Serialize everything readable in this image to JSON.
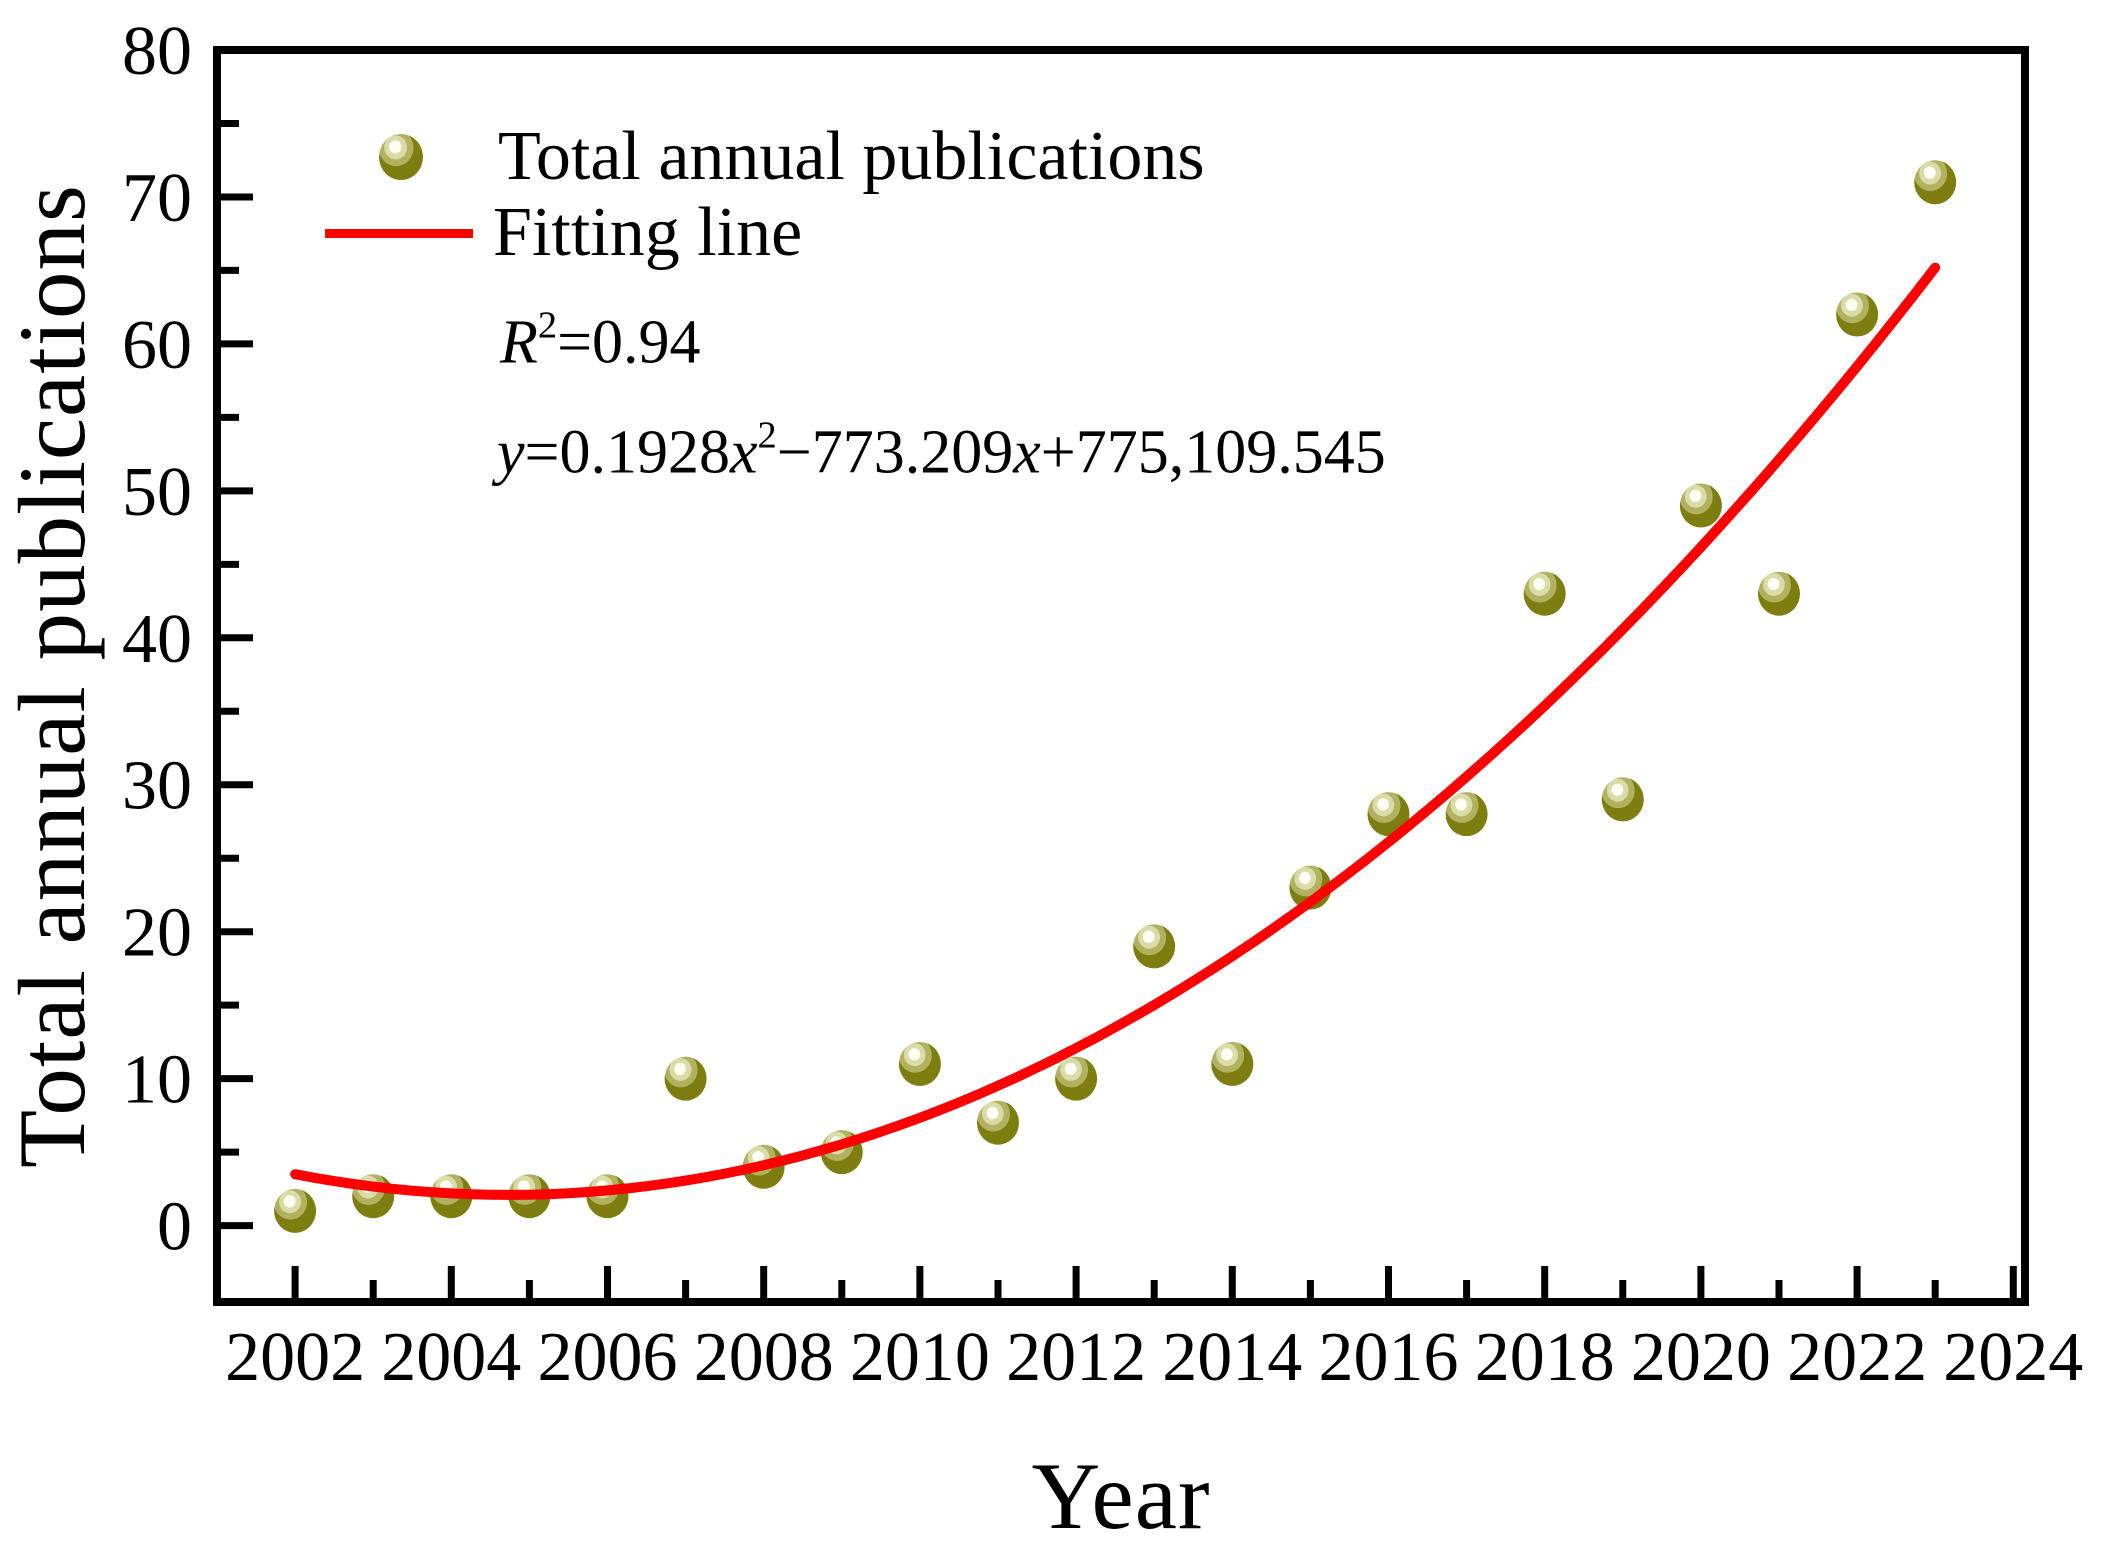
{
  "figure": {
    "background": "#ffffff"
  },
  "chart_data": {
    "type": "scatter",
    "title": "",
    "xlabel": "Year",
    "ylabel": "Total annual publications",
    "xlim": [
      2001,
      2024.15
    ],
    "ylim": [
      -5.2,
      80
    ],
    "grid": false,
    "legend_position": "upper-left",
    "x_major_ticks": [
      2002,
      2004,
      2006,
      2008,
      2010,
      2012,
      2014,
      2016,
      2018,
      2020,
      2022,
      2024
    ],
    "x_minor_ticks": [
      2003,
      2005,
      2007,
      2009,
      2011,
      2013,
      2015,
      2017,
      2019,
      2021,
      2023
    ],
    "y_major_ticks": [
      0,
      10,
      20,
      30,
      40,
      50,
      60,
      70,
      80
    ],
    "y_minor_ticks": [
      5,
      15,
      25,
      35,
      45,
      55,
      65,
      75
    ],
    "series": [
      {
        "name": "Total annual publications",
        "type": "scatter",
        "marker": "sphere",
        "x": [
          2002,
          2003,
          2004,
          2005,
          2006,
          2007,
          2008,
          2009,
          2010,
          2011,
          2012,
          2013,
          2014,
          2015,
          2016,
          2017,
          2018,
          2019,
          2020,
          2021,
          2022,
          2023
        ],
        "y": [
          1,
          2,
          2,
          2,
          2,
          10,
          4,
          5,
          11,
          7,
          10,
          19,
          11,
          23,
          28,
          28,
          43,
          29,
          49,
          43,
          62,
          71
        ]
      },
      {
        "name": "Fitting line",
        "type": "line",
        "fit": {
          "kind": "quadratic",
          "a": 0.1891,
          "b": -1.0334,
          "c": 3.5,
          "t0": 2002,
          "domain": [
            2002,
            2023
          ]
        }
      }
    ],
    "annotations": [
      {
        "id": "r_squared",
        "parts": [
          {
            "text": "R",
            "italic": true
          },
          {
            "text": "2",
            "sup": true
          },
          {
            "text": "=0.94"
          }
        ]
      },
      {
        "id": "equation",
        "parts": [
          {
            "text": "y",
            "italic": true
          },
          {
            "text": "=0.1928"
          },
          {
            "text": "x",
            "italic": true
          },
          {
            "text": "2",
            "sup": true
          },
          {
            "text": "−773.209"
          },
          {
            "text": "x",
            "italic": true
          },
          {
            "text": "+775,109.545"
          }
        ]
      }
    ]
  },
  "colors": {
    "marker_base": "#7e7e10",
    "marker_mid": "#b1b160",
    "marker_light": "#dbdba8",
    "marker_core": "#fefef4",
    "fit_line": "#ff0000",
    "axis": "#000000",
    "text": "#000000",
    "background": "#ffffff"
  }
}
